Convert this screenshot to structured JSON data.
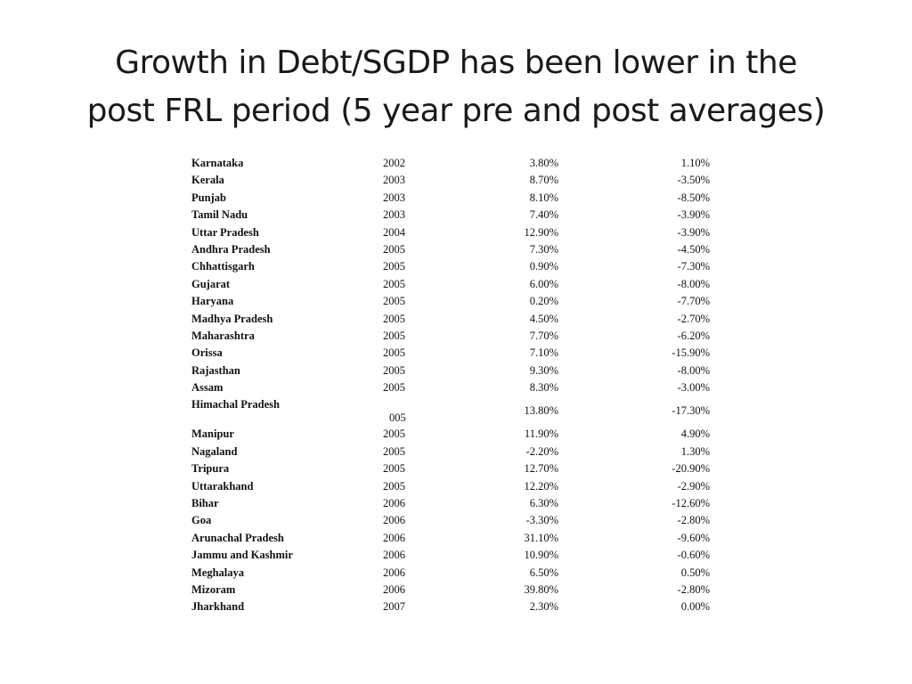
{
  "title": {
    "line1": "Growth in Debt/SGDP has been lower in the",
    "line2": "post FRL period (5 year pre and post averages)"
  },
  "table": {
    "rows": [
      {
        "state": "Karnataka",
        "year": "2002",
        "pre": "3.80%",
        "post": "1.10%"
      },
      {
        "state": "Kerala",
        "year": "2003",
        "pre": "8.70%",
        "post": "-3.50%"
      },
      {
        "state": "Punjab",
        "year": "2003",
        "pre": "8.10%",
        "post": "-8.50%"
      },
      {
        "state": "Tamil Nadu",
        "year": "2003",
        "pre": "7.40%",
        "post": "-3.90%"
      },
      {
        "state": "Uttar Pradesh",
        "year": "2004",
        "pre": "12.90%",
        "post": "-3.90%"
      },
      {
        "state": "Andhra Pradesh",
        "year": "2005",
        "pre": "7.30%",
        "post": "-4.50%"
      },
      {
        "state": "Chhattisgarh",
        "year": "2005",
        "pre": "0.90%",
        "post": "-7.30%"
      },
      {
        "state": "Gujarat",
        "year": "2005",
        "pre": "6.00%",
        "post": "-8.00%"
      },
      {
        "state": "Haryana",
        "year": "2005",
        "pre": "0.20%",
        "post": "-7.70%"
      },
      {
        "state": "Madhya Pradesh",
        "year": "2005",
        "pre": "4.50%",
        "post": "-2.70%"
      },
      {
        "state": "Maharashtra",
        "year": "2005",
        "pre": "7.70%",
        "post": "-6.20%"
      },
      {
        "state": "Orissa",
        "year": "2005",
        "pre": "7.10%",
        "post": "-15.90%"
      },
      {
        "state": "Rajasthan",
        "year": "2005",
        "pre": "9.30%",
        "post": "-8.00%"
      },
      {
        "state": "Assam",
        "year": "2005",
        "pre": "8.30%",
        "post": "-3.00%"
      },
      {
        "state": "Himachal Pradesh",
        "year": "005",
        "pre": "13.80%",
        "post": "-17.30%"
      },
      {
        "state": "Manipur",
        "year": "2005",
        "pre": "11.90%",
        "post": "4.90%"
      },
      {
        "state": "Nagaland",
        "year": "2005",
        "pre": "-2.20%",
        "post": "1.30%"
      },
      {
        "state": "Tripura",
        "year": "2005",
        "pre": "12.70%",
        "post": "-20.90%"
      },
      {
        "state": "Uttarakhand",
        "year": "2005",
        "pre": "12.20%",
        "post": "-2.90%"
      },
      {
        "state": "Bihar",
        "year": "2006",
        "pre": "6.30%",
        "post": "-12.60%"
      },
      {
        "state": "Goa",
        "year": "2006",
        "pre": "-3.30%",
        "post": "-2.80%"
      },
      {
        "state": "Arunachal Pradesh",
        "year": "2006",
        "pre": "31.10%",
        "post": "-9.60%"
      },
      {
        "state": "Jammu and Kashmir",
        "year": "2006",
        "pre": "10.90%",
        "post": "-0.60%"
      },
      {
        "state": "Meghalaya",
        "year": "2006",
        "pre": "6.50%",
        "post": "0.50%"
      },
      {
        "state": "Mizoram",
        "year": "2006",
        "pre": "39.80%",
        "post": "-2.80%"
      },
      {
        "state": "Jharkhand",
        "year": "2007",
        "pre": "2.30%",
        "post": "0.00%"
      }
    ]
  }
}
